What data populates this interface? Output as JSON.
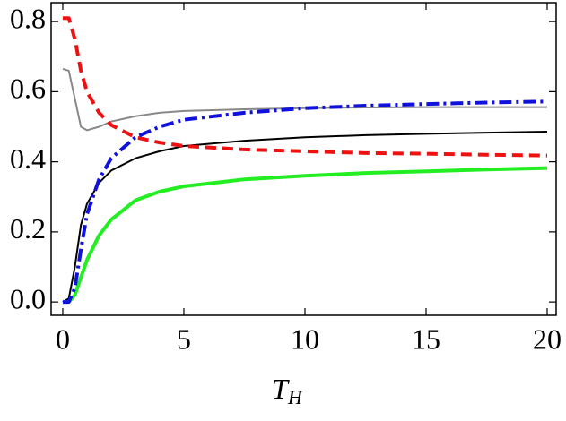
{
  "chart_data": {
    "type": "line",
    "x_label": "T",
    "x_label_subscript": "H",
    "x": [
      0,
      0.25,
      0.5,
      0.75,
      1,
      1.5,
      2,
      3,
      4,
      5,
      7.5,
      10,
      12.5,
      15,
      17.5,
      20
    ],
    "series": [
      {
        "color": "#888888",
        "width": 2,
        "dash": "none",
        "values": [
          0.665,
          0.66,
          0.58,
          0.5,
          0.49,
          0.5,
          0.515,
          0.53,
          0.54,
          0.545,
          0.55,
          0.553,
          0.555,
          0.556,
          0.556,
          0.556
        ]
      },
      {
        "color": "#000000",
        "width": 2,
        "dash": "none",
        "values": [
          0,
          0.01,
          0.1,
          0.22,
          0.28,
          0.34,
          0.375,
          0.41,
          0.43,
          0.445,
          0.46,
          0.47,
          0.476,
          0.48,
          0.483,
          0.486
        ]
      },
      {
        "color": "#22ee22",
        "width": 4,
        "dash": "none",
        "values": [
          0,
          0,
          0.02,
          0.07,
          0.12,
          0.19,
          0.235,
          0.29,
          0.315,
          0.33,
          0.35,
          0.36,
          0.368,
          0.373,
          0.378,
          0.382
        ]
      },
      {
        "color": "#ee1111",
        "width": 4,
        "dash": "12 7",
        "values": [
          0.81,
          0.81,
          0.75,
          0.66,
          0.6,
          0.54,
          0.505,
          0.47,
          0.455,
          0.445,
          0.435,
          0.43,
          0.425,
          0.423,
          0.42,
          0.418
        ]
      },
      {
        "color": "#1111dd",
        "width": 4,
        "dash": "14 5 3 5",
        "values": [
          0,
          0,
          0.04,
          0.15,
          0.25,
          0.35,
          0.41,
          0.47,
          0.5,
          0.52,
          0.54,
          0.553,
          0.56,
          0.565,
          0.569,
          0.572
        ]
      }
    ],
    "xlim": [
      -0.48,
      20.37
    ],
    "ylim": [
      -0.038,
      0.854
    ],
    "xticks": [
      0,
      5,
      10,
      15,
      20
    ],
    "yticks": [
      {
        "value": 0,
        "label": "0.0"
      },
      {
        "value": 0.2,
        "label": "0.2"
      },
      {
        "value": 0.4,
        "label": "0.4"
      },
      {
        "value": 0.6,
        "label": "0.6"
      },
      {
        "value": 0.8,
        "label": "0.8"
      }
    ],
    "grid": false
  }
}
